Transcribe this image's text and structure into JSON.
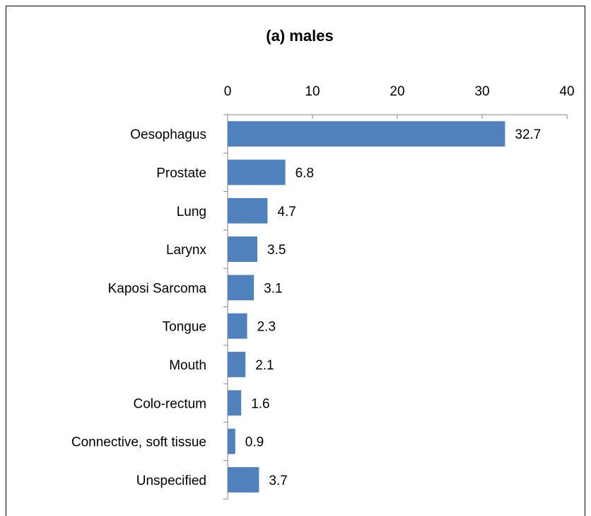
{
  "chart_data": {
    "type": "bar",
    "orientation": "horizontal",
    "title": "(a) males",
    "categories": [
      "Oesophagus",
      "Prostate",
      "Lung",
      "Larynx",
      "Kaposi Sarcoma",
      "Tongue",
      "Mouth",
      "Colo-rectum",
      "Connective, soft tissue",
      "Unspecified"
    ],
    "values": [
      32.7,
      6.8,
      4.7,
      3.5,
      3.1,
      2.3,
      2.1,
      1.6,
      0.9,
      3.7
    ],
    "color": "#4f81bd",
    "xlim": [
      0,
      40
    ],
    "xticks": [
      0,
      10,
      20,
      30,
      40
    ]
  }
}
